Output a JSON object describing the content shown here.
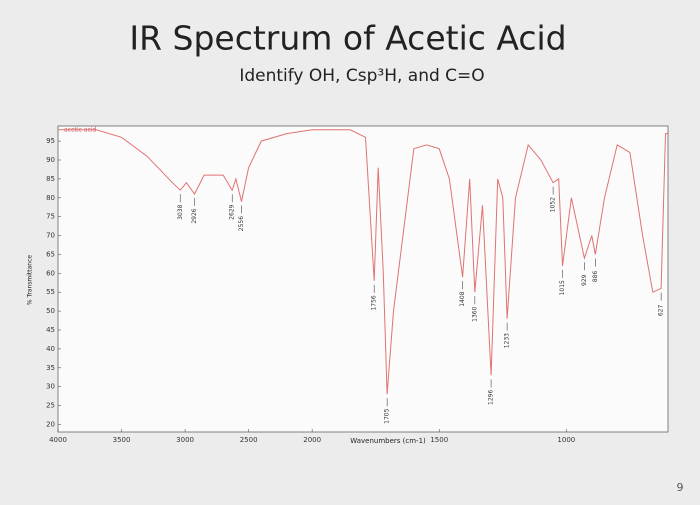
{
  "chart_data": {
    "type": "line",
    "title": "IR Spectrum of Acetic Acid",
    "subtitle": "Identify OH, Csp³H, and C=O",
    "x_label": "Wavenumbers (cm-1)",
    "y_label": "% Transmittance",
    "xlim": [
      4000,
      600
    ],
    "x_scale_break": 2000,
    "xticks": [
      4000,
      3500,
      3000,
      2500,
      2000,
      1500,
      1000
    ],
    "ylim": [
      18,
      99
    ],
    "yticks": [
      20,
      25,
      30,
      35,
      40,
      45,
      50,
      55,
      60,
      65,
      70,
      75,
      80,
      85,
      90,
      95
    ],
    "x": [
      4000,
      3700,
      3500,
      3300,
      3100,
      3038,
      2990,
      2926,
      2850,
      2700,
      2629,
      2600,
      2556,
      2500,
      2400,
      2200,
      2000,
      1850,
      1790,
      1756,
      1740,
      1720,
      1705,
      1680,
      1600,
      1550,
      1500,
      1460,
      1408,
      1380,
      1360,
      1330,
      1296,
      1270,
      1250,
      1233,
      1200,
      1150,
      1100,
      1052,
      1030,
      1015,
      980,
      929,
      900,
      886,
      850,
      800,
      750,
      700,
      660,
      627,
      610,
      600
    ],
    "series": [
      {
        "name": "acetic acid",
        "color": "#e07272",
        "values": [
          98,
          98,
          96,
          91,
          84,
          82,
          84,
          81,
          86,
          86,
          82,
          85,
          79,
          88,
          95,
          97,
          98,
          98,
          96,
          58,
          88,
          60,
          28,
          50,
          93,
          94,
          93,
          85,
          59,
          85,
          55,
          78,
          33,
          85,
          80,
          48,
          80,
          94,
          90,
          84,
          85,
          62,
          80,
          64,
          70,
          65,
          80,
          94,
          92,
          70,
          55,
          56,
          97,
          97
        ]
      }
    ],
    "peak_labels": [
      3038,
      2926,
      2629,
      2556,
      1756,
      1705,
      1408,
      1360,
      1296,
      1233,
      1052,
      1015,
      929,
      886,
      627
    ]
  },
  "page_number": "9"
}
